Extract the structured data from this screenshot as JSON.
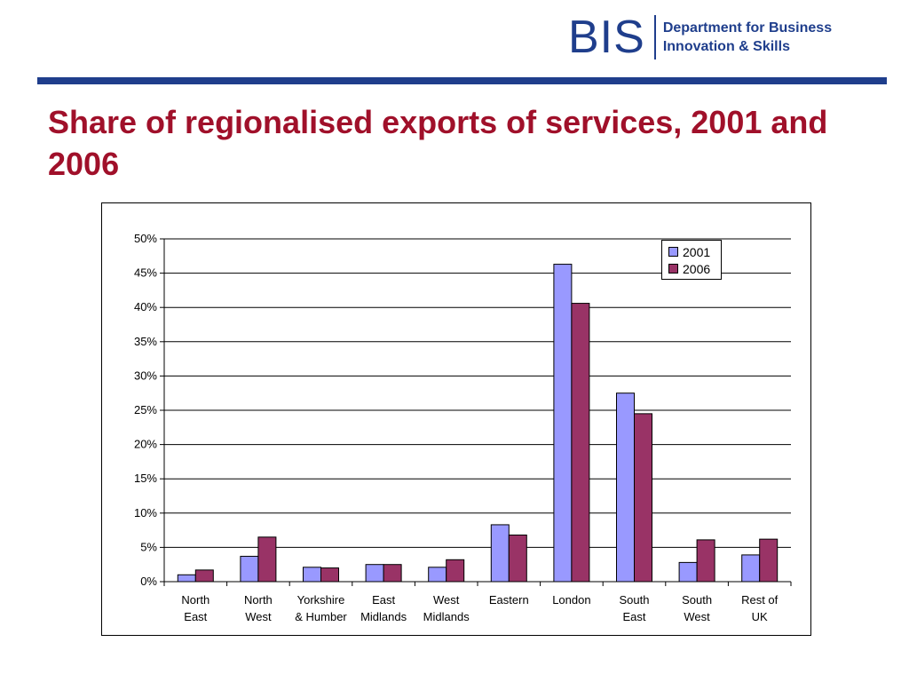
{
  "header": {
    "logo_mark": "BIS",
    "logo_line1": "Department for Business",
    "logo_line2": "Innovation & Skills",
    "brand_color": "#1f3e8c"
  },
  "slide": {
    "title": "Share of regionalised exports of services, 2001 and 2006",
    "title_color": "#a0102a"
  },
  "chart_data": {
    "type": "bar",
    "title": "",
    "xlabel": "",
    "ylabel": "",
    "ylim": [
      0,
      50
    ],
    "y_ticks": [
      "0%",
      "5%",
      "10%",
      "15%",
      "20%",
      "25%",
      "30%",
      "35%",
      "40%",
      "45%",
      "50%"
    ],
    "grid": true,
    "legend_position": "top-right",
    "categories": [
      [
        "North",
        "East"
      ],
      [
        "North",
        "West"
      ],
      [
        "Yorkshire",
        "& Humber"
      ],
      [
        "East",
        "Midlands"
      ],
      [
        "West",
        "Midlands"
      ],
      [
        "Eastern"
      ],
      [
        "London"
      ],
      [
        "South",
        "East"
      ],
      [
        "South",
        "West"
      ],
      [
        "Rest of",
        "UK"
      ]
    ],
    "series": [
      {
        "name": "2001",
        "color": "#9999ff",
        "values": [
          1.0,
          3.7,
          2.1,
          2.5,
          2.1,
          8.3,
          46.3,
          27.5,
          2.8,
          3.9
        ]
      },
      {
        "name": "2006",
        "color": "#993366",
        "values": [
          1.7,
          6.5,
          2.0,
          2.5,
          3.2,
          6.8,
          40.6,
          24.5,
          6.1,
          6.2
        ]
      }
    ]
  }
}
